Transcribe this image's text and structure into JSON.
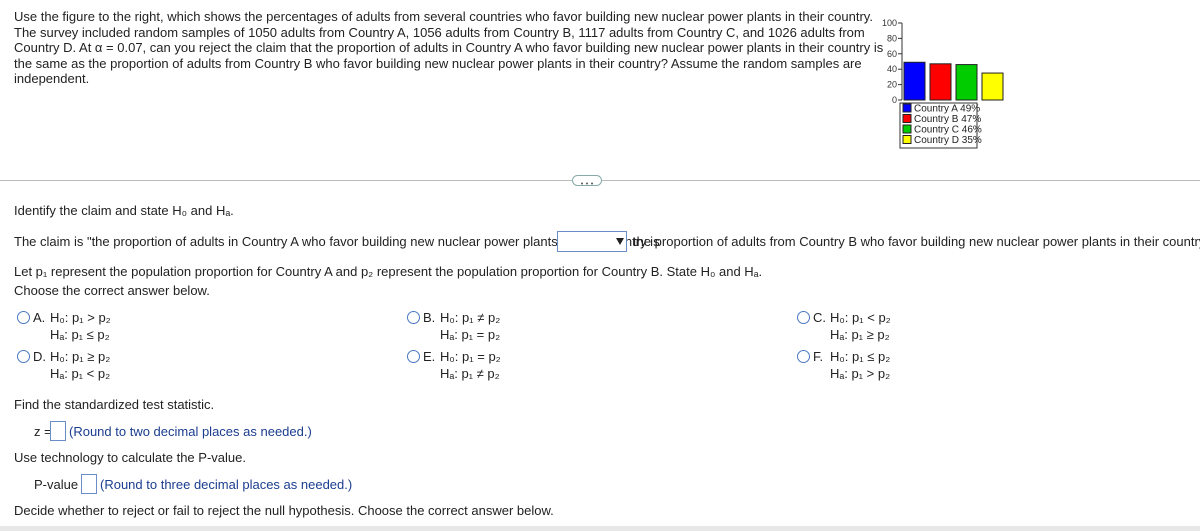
{
  "problem": {
    "text": "Use the figure to the right, which shows the percentages of adults from several countries who favor building new nuclear power plants in their country. The survey included random samples of 1050 adults from Country A, 1056 adults from Country B, 1117 adults from Country C, and 1026 adults from Country D. At α = 0.07, can you reject the claim that the proportion of adults in Country A who favor building new nuclear power plants in their country is the same as the proportion of adults from Country B who favor building new nuclear power plants in their country? Assume the random samples are independent.",
    "chart": {
      "type": "bar",
      "categories": [
        "Country A",
        "Country B",
        "Country C",
        "Country D"
      ],
      "values": [
        49,
        47,
        46,
        35
      ],
      "value_labels": [
        "49%",
        "47%",
        "46%",
        "35%"
      ],
      "colors": [
        "#0000ff",
        "#ff0000",
        "#00cc00",
        "#ffff00"
      ],
      "ylim": [
        0,
        100
      ],
      "yticks": [
        0,
        20,
        40,
        60,
        80,
        100
      ]
    }
  },
  "questions": {
    "identify": "Identify the claim and state H₀ and Hₐ.",
    "claim_before": "The claim is \"the proportion of adults in Country A who favor building new nuclear power plants in their country is",
    "claim_after": "the proportion of adults from Country B who favor building new nuclear power plants in their country.\"",
    "let": "Let p₁ represent the population proportion for Country A and p₂ represent the population proportion for Country B. State H₀ and Hₐ.",
    "choose": "Choose the correct answer below.",
    "options": [
      {
        "letter": "A.",
        "h0": "H₀: p₁ > p₂",
        "ha": "Hₐ: p₁ ≤ p₂"
      },
      {
        "letter": "B.",
        "h0": "H₀: p₁ ≠ p₂",
        "ha": "Hₐ: p₁ = p₂"
      },
      {
        "letter": "C.",
        "h0": "H₀: p₁ < p₂",
        "ha": "Hₐ: p₁ ≥ p₂"
      },
      {
        "letter": "D.",
        "h0": "H₀: p₁ ≥ p₂",
        "ha": "Hₐ: p₁ < p₂"
      },
      {
        "letter": "E.",
        "h0": "H₀: p₁ = p₂",
        "ha": "Hₐ: p₁ ≠ p₂"
      },
      {
        "letter": "F.",
        "h0": "H₀: p₁ ≤ p₂",
        "ha": "Hₐ: p₁ > p₂"
      }
    ],
    "find_z": "Find the standardized test statistic.",
    "z_label": "z =",
    "z_hint": "(Round to two decimal places as needed.)",
    "use_tech": "Use technology to calculate the P-value.",
    "p_label": "P-value =",
    "p_hint": "(Round to three decimal places as needed.)",
    "decide": "Decide whether to reject or fail to reject the null hypothesis. Choose the correct answer below."
  }
}
